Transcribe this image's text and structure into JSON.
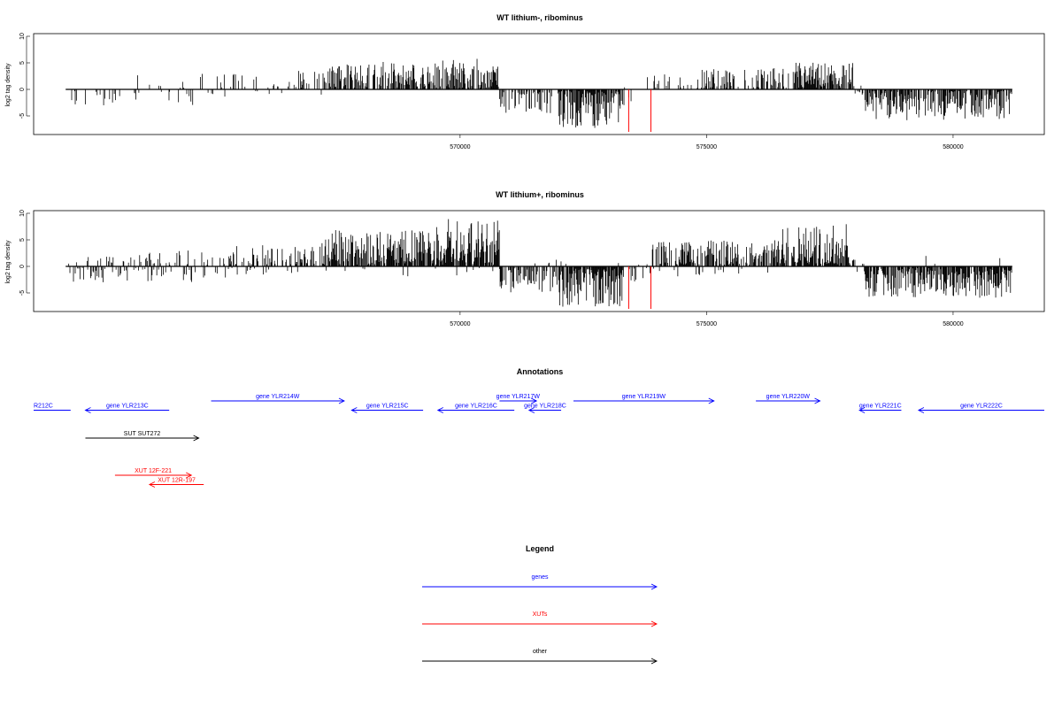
{
  "chart_data": [
    {
      "type": "bar",
      "title": "WT lithium-, ribominus",
      "ylabel": "log2 tag density",
      "ylim": [
        -8.5,
        10.5
      ],
      "yticks": [
        -5,
        0,
        5,
        10
      ],
      "xlim": [
        561350,
        581850
      ],
      "xticks": [
        570000,
        575000,
        580000
      ],
      "baseline": {
        "from": 562000,
        "to": 581200
      },
      "markers": {
        "color": "#ff0000",
        "x": [
          573420,
          573870
        ],
        "y": -8
      },
      "regions": [
        {
          "x": [
            562050,
            563400
          ],
          "lo": -3.5,
          "hi": 1.5,
          "density": 0.25,
          "bias": -0.5
        },
        {
          "x": [
            563400,
            565000
          ],
          "lo": -3.3,
          "hi": 3.0,
          "density": 0.22,
          "bias": 0.0
        },
        {
          "x": [
            565000,
            566500
          ],
          "lo": -2.5,
          "hi": 3.2,
          "density": 0.15,
          "bias": 0.3
        },
        {
          "x": [
            566500,
            567300
          ],
          "lo": -2.0,
          "hi": 3.5,
          "density": 0.45,
          "bias": 0.9
        },
        {
          "x": [
            567300,
            569600
          ],
          "lo": -1.5,
          "hi": 5.2,
          "density": 0.75,
          "bias": 1.0
        },
        {
          "x": [
            569600,
            570800
          ],
          "lo": -1.0,
          "hi": 5.8,
          "density": 0.9,
          "bias": 1.0
        },
        {
          "x": [
            570800,
            572000
          ],
          "lo": -4.5,
          "hi": 1.0,
          "density": 0.55,
          "bias": -0.9
        },
        {
          "x": [
            572000,
            573300
          ],
          "lo": -7.5,
          "hi": 0.5,
          "density": 0.95,
          "bias": -1.0
        },
        {
          "x": [
            573300,
            573500
          ],
          "lo": -3.0,
          "hi": 0.5,
          "density": 0.2,
          "bias": -0.6
        },
        {
          "x": [
            573500,
            574800
          ],
          "lo": -1.0,
          "hi": 3.5,
          "density": 0.12,
          "bias": 1.0
        },
        {
          "x": [
            574800,
            576300
          ],
          "lo": -1.0,
          "hi": 3.8,
          "density": 0.55,
          "bias": 1.0
        },
        {
          "x": [
            576300,
            576800
          ],
          "lo": -0.5,
          "hi": 4.0,
          "density": 0.5,
          "bias": 1.0
        },
        {
          "x": [
            576800,
            578000
          ],
          "lo": -0.5,
          "hi": 5.2,
          "density": 0.95,
          "bias": 1.0
        },
        {
          "x": [
            578000,
            578200
          ],
          "lo": -1.0,
          "hi": 2.0,
          "density": 0.3,
          "bias": 0.2
        },
        {
          "x": [
            578200,
            581200
          ],
          "lo": -6.0,
          "hi": 0.5,
          "density": 0.85,
          "bias": -1.0
        }
      ]
    },
    {
      "type": "bar",
      "title": "WT lithium+, ribominus",
      "ylabel": "log2 tag density",
      "ylim": [
        -8.5,
        10.5
      ],
      "yticks": [
        -5,
        0,
        5,
        10
      ],
      "xlim": [
        561350,
        581850
      ],
      "xticks": [
        570000,
        575000,
        580000
      ],
      "baseline": {
        "from": 562000,
        "to": 581200
      },
      "markers": {
        "color": "#ff0000",
        "x": [
          573420,
          573870
        ],
        "y": -8
      },
      "regions": [
        {
          "x": [
            562050,
            563500
          ],
          "lo": -3.0,
          "hi": 2.0,
          "density": 0.55,
          "bias": -0.3
        },
        {
          "x": [
            563500,
            565300
          ],
          "lo": -3.0,
          "hi": 3.0,
          "density": 0.55,
          "bias": 0.2
        },
        {
          "x": [
            565300,
            567200
          ],
          "lo": -2.0,
          "hi": 4.0,
          "density": 0.6,
          "bias": 0.5
        },
        {
          "x": [
            567200,
            569500
          ],
          "lo": -2.0,
          "hi": 7.0,
          "density": 1.0,
          "bias": 0.9
        },
        {
          "x": [
            569500,
            570800
          ],
          "lo": -2.0,
          "hi": 9.5,
          "density": 1.0,
          "bias": 0.9
        },
        {
          "x": [
            570800,
            572000
          ],
          "lo": -5.0,
          "hi": 2.0,
          "density": 0.9,
          "bias": -0.8
        },
        {
          "x": [
            572000,
            573300
          ],
          "lo": -7.8,
          "hi": 1.0,
          "density": 1.0,
          "bias": -0.9
        },
        {
          "x": [
            573300,
            573900
          ],
          "lo": -3.0,
          "hi": 1.0,
          "density": 0.3,
          "bias": -0.4
        },
        {
          "x": [
            573900,
            574500
          ],
          "lo": -2.0,
          "hi": 5.0,
          "density": 0.85,
          "bias": 0.7
        },
        {
          "x": [
            574500,
            576500
          ],
          "lo": -2.0,
          "hi": 5.0,
          "density": 0.85,
          "bias": 0.8
        },
        {
          "x": [
            576500,
            577900
          ],
          "lo": -1.0,
          "hi": 8.0,
          "density": 1.0,
          "bias": 0.95
        },
        {
          "x": [
            577900,
            578200
          ],
          "lo": -2.0,
          "hi": 2.0,
          "density": 0.4,
          "bias": 0.1
        },
        {
          "x": [
            578200,
            581200
          ],
          "lo": -6.0,
          "hi": 2.5,
          "density": 0.95,
          "bias": -0.95
        }
      ]
    }
  ],
  "annotations": {
    "title": "Annotations",
    "xlim": [
      561350,
      581850
    ],
    "tracks": [
      {
        "label": "R212C",
        "x1": 561350,
        "x2": 562100,
        "row": 2,
        "color": "#0000ff",
        "arrow": "none"
      },
      {
        "label": "gene YLR213C",
        "x1": 562400,
        "x2": 564100,
        "row": 2,
        "color": "#0000ff",
        "arrow": "left"
      },
      {
        "label": "gene YLR214W",
        "x1": 564950,
        "x2": 567650,
        "row": 1,
        "color": "#0000ff",
        "arrow": "right"
      },
      {
        "label": "gene YLR215C",
        "x1": 567800,
        "x2": 569250,
        "row": 2,
        "color": "#0000ff",
        "arrow": "left"
      },
      {
        "label": "gene YLR216C",
        "x1": 569550,
        "x2": 571100,
        "row": 2,
        "color": "#0000ff",
        "arrow": "left"
      },
      {
        "label": "gene YLR217W",
        "x1": 570800,
        "x2": 571550,
        "row": 1,
        "color": "#0000ff",
        "arrow": "right"
      },
      {
        "label": "gene YLR218C",
        "x1": 571400,
        "x2": 572050,
        "row": 2,
        "color": "#0000ff",
        "arrow": "left"
      },
      {
        "label": "gene YLR219W",
        "x1": 572300,
        "x2": 575150,
        "row": 1,
        "color": "#0000ff",
        "arrow": "right"
      },
      {
        "label": "gene YLR220W",
        "x1": 576000,
        "x2": 577300,
        "row": 1,
        "color": "#0000ff",
        "arrow": "right"
      },
      {
        "label": "gene YLR221C",
        "x1": 578100,
        "x2": 578950,
        "row": 2,
        "color": "#0000ff",
        "arrow": "left"
      },
      {
        "label": "gene YLR222C",
        "x1": 579300,
        "x2": 581850,
        "row": 2,
        "color": "#0000ff",
        "arrow": "left"
      },
      {
        "label": "SUT SUT272",
        "x1": 562400,
        "x2": 564700,
        "row": 5,
        "color": "#000000",
        "arrow": "right"
      },
      {
        "label": "XUT 12F-221",
        "x1": 563000,
        "x2": 564550,
        "row": 9,
        "color": "#ff0000",
        "arrow": "right"
      },
      {
        "label": "XUT 12R-197",
        "x1": 563700,
        "x2": 564800,
        "row": 10,
        "color": "#ff0000",
        "arrow": "left"
      }
    ]
  },
  "legend": {
    "title": "Legend",
    "items": [
      {
        "label": "genes",
        "color": "#0000ff"
      },
      {
        "label": "XUTs",
        "color": "#ff0000"
      },
      {
        "label": "other",
        "color": "#000000"
      }
    ]
  }
}
